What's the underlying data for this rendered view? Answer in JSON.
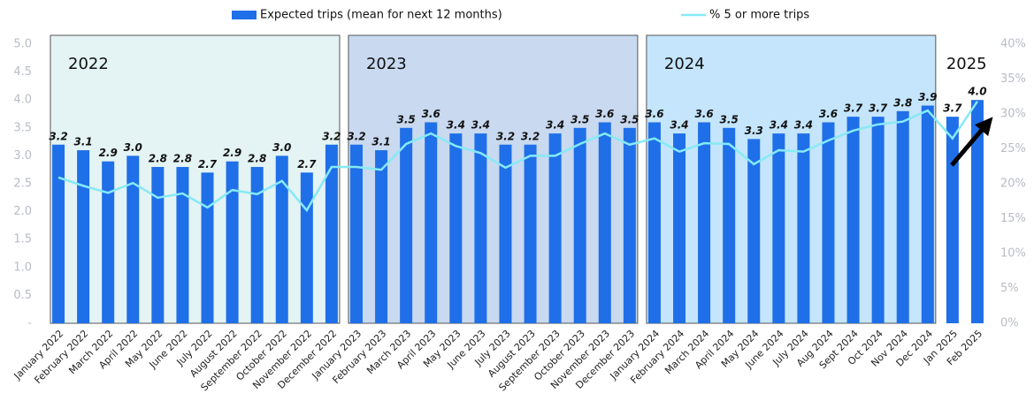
{
  "chart_data": {
    "type": "bar",
    "categories": [
      "January 2022",
      "February 2022",
      "March 2022",
      "April 2022",
      "May 2022",
      "June 2022",
      "July 2022",
      "August 2022",
      "September 2022",
      "October 2022",
      "November 2022",
      "December 2022",
      "January 2023",
      "February 2023",
      "March 2023",
      "April 2023",
      "May 2023",
      "June 2023",
      "July 2023",
      "August 2023",
      "September 2023",
      "October 2023",
      "November 2023",
      "December 2023",
      "January 2024",
      "February 2024",
      "March 2024",
      "April 2024",
      "May 2024",
      "June 2024",
      "July 2024",
      "Aug 2024",
      "Sept 2024",
      "Oct 2024",
      "Nov 2024",
      "Dec 2024",
      "Jan 2025",
      "Feb 2025"
    ],
    "series": [
      {
        "name": "Expected trips (mean for next 12 months)",
        "type": "bar",
        "color": "#1f6fe8",
        "values": [
          3.2,
          3.1,
          2.9,
          3.0,
          2.8,
          2.8,
          2.7,
          2.9,
          2.8,
          3.0,
          2.7,
          3.2,
          3.2,
          3.1,
          3.5,
          3.6,
          3.4,
          3.4,
          3.2,
          3.2,
          3.4,
          3.5,
          3.6,
          3.5,
          3.6,
          3.4,
          3.6,
          3.5,
          3.3,
          3.4,
          3.4,
          3.6,
          3.7,
          3.7,
          3.8,
          3.9,
          3.7,
          4.0
        ],
        "value_labels": [
          "3.2",
          "3.1",
          "2.9",
          "3.0",
          "2.8",
          "2.8",
          "2.7",
          "2.9",
          "2.8",
          "3.0",
          "2.7",
          "3.2",
          "3.2",
          "3.1",
          "3.5",
          "3.6",
          "3.4",
          "3.4",
          "3.2",
          "3.2",
          "3.4",
          "3.5",
          "3.6",
          "3.5",
          "3.6",
          "3.4",
          "3.6",
          "3.5",
          "3.3",
          "3.4",
          "3.4",
          "3.6",
          "3.7",
          "3.7",
          "3.8",
          "3.9",
          "3.7",
          "4.0"
        ]
      },
      {
        "name": "% 5 or more trips",
        "type": "line",
        "axis": "y2",
        "color": "#86eaf5",
        "values": [
          20.9,
          19.7,
          18.7,
          20.1,
          18.0,
          18.6,
          16.6,
          19.1,
          18.5,
          20.4,
          16.2,
          22.4,
          22.4,
          22.0,
          25.7,
          27.2,
          25.4,
          24.4,
          22.3,
          24.0,
          24.0,
          25.7,
          27.2,
          25.6,
          26.5,
          24.6,
          25.8,
          25.7,
          22.8,
          24.8,
          24.6,
          26.2,
          27.6,
          28.5,
          28.9,
          30.5,
          26.5,
          31.8
        ]
      }
    ],
    "ylim": [
      0,
      5
    ],
    "yticks": [
      {
        "value": 0,
        "label": "-"
      },
      {
        "value": 0.5,
        "label": "0.5"
      },
      {
        "value": 1,
        "label": "1.0"
      },
      {
        "value": 1.5,
        "label": "1.5"
      },
      {
        "value": 2,
        "label": "2.0"
      },
      {
        "value": 2.5,
        "label": "2.5"
      },
      {
        "value": 3,
        "label": "3.0"
      },
      {
        "value": 3.5,
        "label": "3.5"
      },
      {
        "value": 4,
        "label": "4.0"
      },
      {
        "value": 4.5,
        "label": "4.5"
      },
      {
        "value": 5,
        "label": "5.0"
      }
    ],
    "y2lim": [
      0,
      40
    ],
    "y2ticks": [
      {
        "value": 0,
        "label": "0%"
      },
      {
        "value": 5,
        "label": "5%"
      },
      {
        "value": 10,
        "label": "10%"
      },
      {
        "value": 15,
        "label": "15%"
      },
      {
        "value": 20,
        "label": "20%"
      },
      {
        "value": 25,
        "label": "25%"
      },
      {
        "value": 30,
        "label": "30%"
      },
      {
        "value": 35,
        "label": "35%"
      },
      {
        "value": 40,
        "label": "40%"
      }
    ],
    "year_groups": [
      {
        "label": "2022",
        "color": "#e4f3f4"
      },
      {
        "label": "2023",
        "color": "#c8d9f0"
      },
      {
        "label": "2024",
        "color": "#c4e5fb"
      },
      {
        "label": "2025"
      }
    ],
    "legend": "top"
  }
}
